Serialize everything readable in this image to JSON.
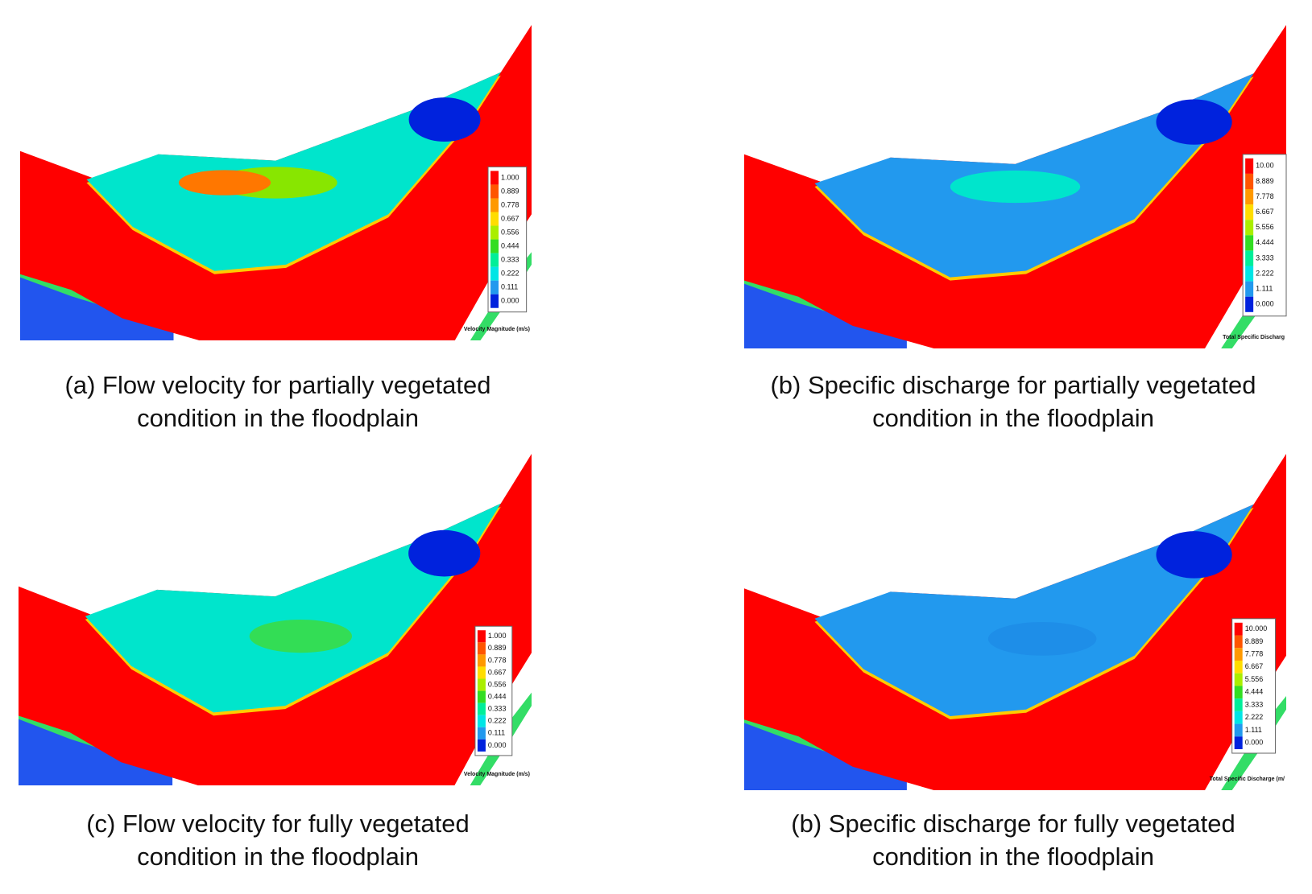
{
  "panels": [
    {
      "caption": [
        "(a) Flow velocity for partially vegetated",
        "condition in the floodplain"
      ],
      "legend": {
        "title": "Velocity Magnitude (m/s)",
        "labels": [
          "1.000",
          "0.889",
          "0.778",
          "0.667",
          "0.556",
          "0.444",
          "0.333",
          "0.222",
          "0.111",
          "0.000"
        ]
      }
    },
    {
      "caption": [
        "(b) Specific discharge for partially vegetated",
        "condition in the floodplain"
      ],
      "legend": {
        "title": "Total Specific Discharg",
        "labels": [
          "10.00",
          "8.889",
          "7.778",
          "6.667",
          "5.556",
          "4.444",
          "3.333",
          "2.222",
          "1.111",
          "0.000"
        ]
      }
    },
    {
      "caption": [
        "(c) Flow velocity for fully vegetated",
        "condition in the floodplain"
      ],
      "legend": {
        "title": "Velocity Magnitude (m/s)",
        "labels": [
          "1.000",
          "0.889",
          "0.778",
          "0.667",
          "0.556",
          "0.444",
          "0.333",
          "0.222",
          "0.111",
          "0.000"
        ]
      }
    },
    {
      "caption": [
        "(b) Specific discharge for fully vegetated",
        "condition in the floodplain"
      ],
      "legend": {
        "title": "Total Specific Discharge (m/",
        "labels": [
          "10.000",
          "8.889",
          "7.778",
          "6.667",
          "5.556",
          "4.444",
          "3.333",
          "2.222",
          "1.111",
          "0.000"
        ]
      }
    }
  ]
}
